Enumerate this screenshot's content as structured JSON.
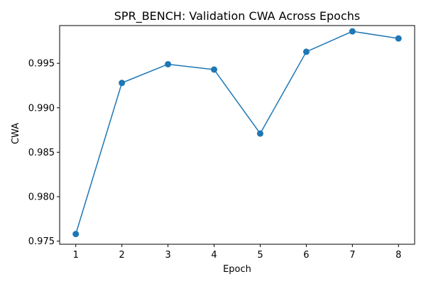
{
  "chart_data": {
    "type": "line",
    "title": "SPR_BENCH: Validation CWA Across Epochs",
    "xlabel": "Epoch",
    "ylabel": "CWA",
    "x": [
      1,
      2,
      3,
      4,
      5,
      6,
      7,
      8
    ],
    "series": [
      {
        "values": [
          0.9758,
          0.9928,
          0.9949,
          0.9943,
          0.9871,
          0.9963,
          0.9986,
          0.9978
        ]
      }
    ],
    "xticks": [
      "1",
      "2",
      "3",
      "4",
      "5",
      "6",
      "7",
      "8"
    ],
    "yticks": [
      "0.975",
      "0.980",
      "0.985",
      "0.990",
      "0.995"
    ],
    "xlim": [
      0.65,
      8.35
    ],
    "ylim": [
      0.97465,
      0.99925
    ],
    "grid": false,
    "legend": "none",
    "colors": {
      "line": "#1f77b4",
      "axes": "#000000"
    }
  }
}
